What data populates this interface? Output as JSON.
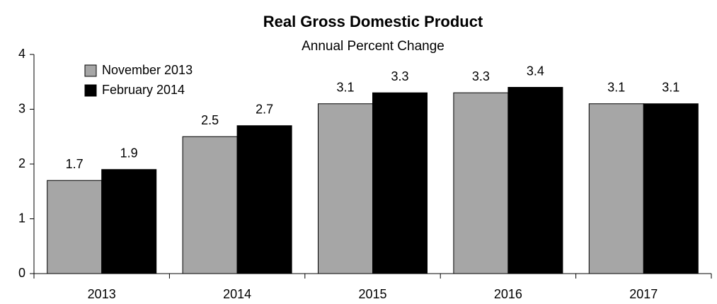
{
  "chart_data": {
    "type": "bar",
    "title": "Real Gross Domestic Product",
    "subtitle": "Annual Percent Change",
    "categories": [
      "2013",
      "2014",
      "2015",
      "2016",
      "2017"
    ],
    "series": [
      {
        "name": "November 2013",
        "color": "#a6a6a6",
        "values": [
          1.7,
          2.5,
          3.1,
          3.3,
          3.1
        ]
      },
      {
        "name": "February 2014",
        "color": "#000000",
        "values": [
          1.9,
          2.7,
          3.3,
          3.4,
          3.1
        ]
      }
    ],
    "ylim": [
      0,
      4
    ],
    "yticks": [
      0,
      1,
      2,
      3,
      4
    ],
    "grid": false,
    "legend": "upper left"
  }
}
